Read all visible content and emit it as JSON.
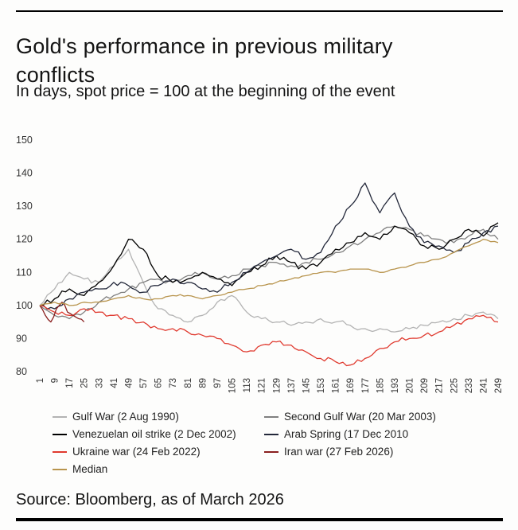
{
  "header": {
    "title": "Gold's performance in previous military conflicts",
    "subtitle": "In days, spot price = 100 at the beginning of the event"
  },
  "footer": {
    "source": "Source: Bloomberg, as of March 2026"
  },
  "chart_data": {
    "type": "line",
    "title": "Gold's performance in previous military conflicts",
    "subtitle": "In days, spot price = 100 at the beginning of the event",
    "source": "Source: Bloomberg, as of March 2026",
    "xlabel": "",
    "ylabel": "",
    "grid": false,
    "legend_position": "bottom",
    "x_range": [
      1,
      249
    ],
    "y_range": [
      80,
      150
    ],
    "y_ticks": [
      80,
      90,
      100,
      110,
      120,
      130,
      140,
      150
    ],
    "x_ticks": [
      1,
      9,
      17,
      25,
      33,
      41,
      49,
      57,
      65,
      73,
      81,
      89,
      97,
      105,
      113,
      121,
      129,
      137,
      145,
      153,
      161,
      169,
      177,
      185,
      193,
      201,
      209,
      217,
      225,
      233,
      241,
      249
    ],
    "sample_x": [
      1,
      9,
      17,
      25,
      33,
      41,
      49,
      57,
      65,
      73,
      81,
      89,
      97,
      105,
      113,
      121,
      129,
      137,
      145,
      153,
      161,
      169,
      177,
      185,
      193,
      201,
      209,
      217,
      225,
      233,
      241,
      249
    ],
    "series": [
      {
        "name": "Gulf War (2 Aug 1990)",
        "color": "#b3b3b3",
        "jitter": 0.9,
        "values": [
          100,
          105,
          110,
          108,
          107,
          112,
          117,
          107,
          99,
          97,
          95,
          97,
          101,
          103,
          98,
          96,
          95,
          94,
          95,
          96,
          95,
          94,
          93,
          93,
          92,
          93,
          94,
          95,
          96,
          97,
          98,
          96
        ]
      },
      {
        "name": "Second Gulf War (20 Mar 2003)",
        "color": "#7f7f7f",
        "jitter": 0.8,
        "values": [
          100,
          97,
          96,
          98,
          101,
          103,
          105,
          107,
          108,
          107,
          109,
          110,
          108,
          109,
          111,
          112,
          113,
          112,
          113,
          114,
          116,
          118,
          120,
          122,
          124,
          123,
          121,
          120,
          119,
          121,
          123,
          120
        ]
      },
      {
        "name": "Venezuelan oil strike (2 Dec 2002)",
        "color": "#000000",
        "jitter": 1.0,
        "values": [
          100,
          102,
          105,
          103,
          107,
          112,
          120,
          117,
          109,
          107,
          108,
          110,
          108,
          106,
          110,
          112,
          115,
          113,
          111,
          113,
          117,
          119,
          122,
          120,
          124,
          122,
          118,
          117,
          120,
          123,
          121,
          125
        ]
      },
      {
        "name": "Arab Spring (17 Dec 2010",
        "color": "#23283a",
        "jitter": 1.0,
        "values": [
          100,
          99,
          102,
          104,
          105,
          107,
          106,
          104,
          106,
          108,
          107,
          105,
          104,
          107,
          110,
          113,
          115,
          117,
          114,
          116,
          124,
          130,
          137,
          128,
          134,
          124,
          119,
          118,
          116,
          119,
          122,
          124
        ]
      },
      {
        "name": "Ukraine war (24 Feb 2022)",
        "color": "#e03a2f",
        "jitter": 0.8,
        "values": [
          100,
          98,
          97,
          99,
          98,
          97,
          96,
          95,
          93,
          93,
          92,
          91,
          90,
          88,
          86,
          88,
          89,
          88,
          86,
          84,
          83,
          82,
          84,
          87,
          89,
          90,
          91,
          92,
          94,
          96,
          97,
          95
        ]
      },
      {
        "name": "Iran war (27 Feb 2026)",
        "color": "#8a1f1f",
        "jitter": 0.6,
        "x": [
          1,
          4,
          7,
          10,
          13,
          16,
          19,
          22,
          25
        ],
        "values": [
          100,
          97,
          95,
          99,
          101,
          98,
          97,
          96,
          95
        ]
      },
      {
        "name": "Median",
        "color": "#b8944d",
        "jitter": 0.35,
        "values": [
          100,
          101,
          100,
          101,
          101,
          102,
          103,
          102,
          102,
          103,
          103,
          102,
          103,
          104,
          105,
          106,
          107,
          108,
          109,
          110,
          110,
          111,
          111,
          110,
          111,
          112,
          113,
          114,
          116,
          118,
          120,
          119
        ]
      }
    ]
  }
}
